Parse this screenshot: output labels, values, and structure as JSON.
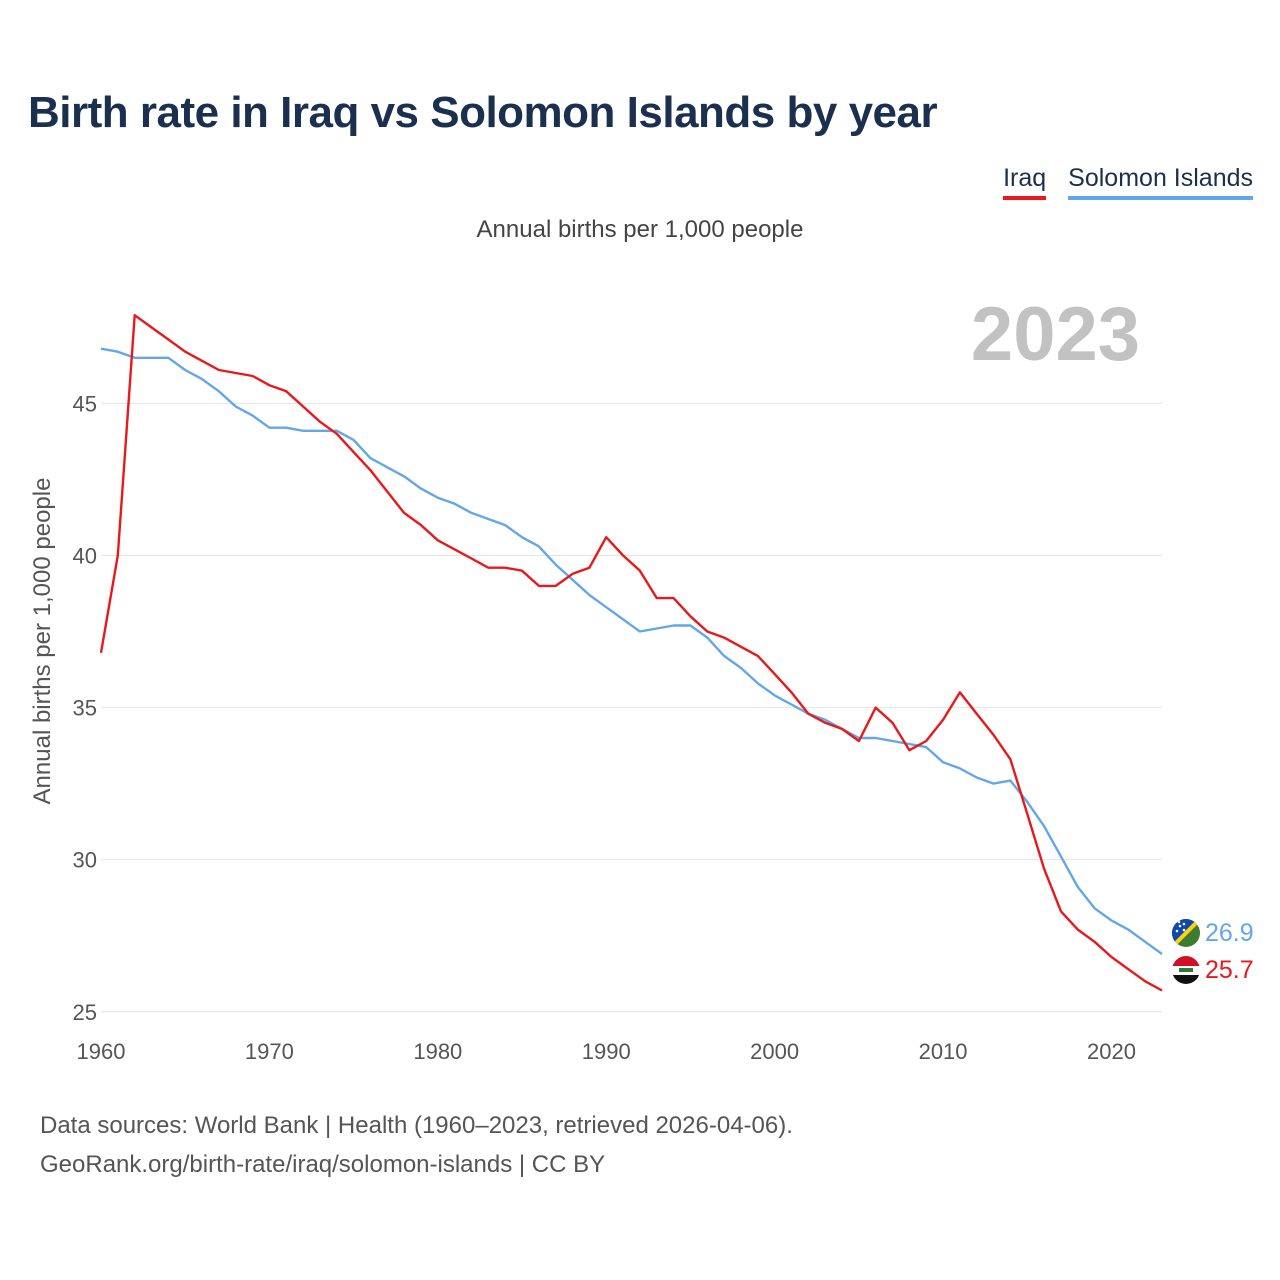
{
  "title": "Birth rate in Iraq vs Solomon Islands by year",
  "subtitle": "Annual births per 1,000 people",
  "legend": [
    {
      "name": "Iraq",
      "color": "#e8191c"
    },
    {
      "name": "Solomon Islands",
      "color": "#63a7e8"
    }
  ],
  "year_label": "2023",
  "source_line1": "Data sources: World Bank | Health (1960–2023, retrieved 2026-04-06).",
  "source_line2": "GeoRank.org/birth-rate/iraq/solomon-islands | CC BY",
  "end_labels": {
    "solomon": "26.9",
    "iraq": "25.7"
  },
  "flags": {
    "solomon": "solomon-islands-flag-icon",
    "iraq": "iraq-flag-icon"
  },
  "chart_data": {
    "type": "line",
    "title": "Birth rate in Iraq vs Solomon Islands by year",
    "xlabel": "",
    "ylabel": "Annual births per 1,000 people",
    "xlim": [
      1960,
      2023
    ],
    "ylim": [
      24.4,
      48.4
    ],
    "x_ticks": [
      1960,
      1970,
      1980,
      1990,
      2000,
      2010,
      2020
    ],
    "y_ticks": [
      25,
      30,
      35,
      40,
      45
    ],
    "grid": true,
    "legend_position": "top-right",
    "x": [
      1960,
      1961,
      1962,
      1963,
      1964,
      1965,
      1966,
      1967,
      1968,
      1969,
      1970,
      1971,
      1972,
      1973,
      1974,
      1975,
      1976,
      1977,
      1978,
      1979,
      1980,
      1981,
      1982,
      1983,
      1984,
      1985,
      1986,
      1987,
      1988,
      1989,
      1990,
      1991,
      1992,
      1993,
      1994,
      1995,
      1996,
      1997,
      1998,
      1999,
      2000,
      2001,
      2002,
      2003,
      2004,
      2005,
      2006,
      2007,
      2008,
      2009,
      2010,
      2011,
      2012,
      2013,
      2014,
      2015,
      2016,
      2017,
      2018,
      2019,
      2020,
      2021,
      2022,
      2023
    ],
    "series": [
      {
        "name": "Iraq",
        "color": "#e8191c",
        "values": [
          36.8,
          40.0,
          47.9,
          47.5,
          47.1,
          46.7,
          46.4,
          46.1,
          46.0,
          45.9,
          45.6,
          45.4,
          44.9,
          44.4,
          44.0,
          43.4,
          42.8,
          42.1,
          41.4,
          41.0,
          40.5,
          40.2,
          39.9,
          39.6,
          39.6,
          39.5,
          39.0,
          39.0,
          39.4,
          39.6,
          40.6,
          40.0,
          39.5,
          38.6,
          38.6,
          38.0,
          37.5,
          37.3,
          37.0,
          36.7,
          36.1,
          35.5,
          34.8,
          34.5,
          34.3,
          33.9,
          35.0,
          34.5,
          33.6,
          33.9,
          34.6,
          35.5,
          34.8,
          34.1,
          33.3,
          31.5,
          29.7,
          28.3,
          27.7,
          27.3,
          26.8,
          26.4,
          26.0,
          25.7
        ]
      },
      {
        "name": "Solomon Islands",
        "color": "#63a7e8",
        "values": [
          46.8,
          46.7,
          46.5,
          46.5,
          46.5,
          46.1,
          45.8,
          45.4,
          44.9,
          44.6,
          44.2,
          44.2,
          44.1,
          44.1,
          44.1,
          43.8,
          43.2,
          42.9,
          42.6,
          42.2,
          41.9,
          41.7,
          41.4,
          41.2,
          41.0,
          40.6,
          40.3,
          39.7,
          39.2,
          38.7,
          38.3,
          37.9,
          37.5,
          37.6,
          37.7,
          37.7,
          37.3,
          36.7,
          36.3,
          35.8,
          35.4,
          35.1,
          34.8,
          34.6,
          34.3,
          34.0,
          34.0,
          33.9,
          33.8,
          33.7,
          33.2,
          33.0,
          32.7,
          32.5,
          32.6,
          31.9,
          31.1,
          30.1,
          29.1,
          28.4,
          28.0,
          27.7,
          27.3,
          26.9
        ]
      }
    ]
  }
}
